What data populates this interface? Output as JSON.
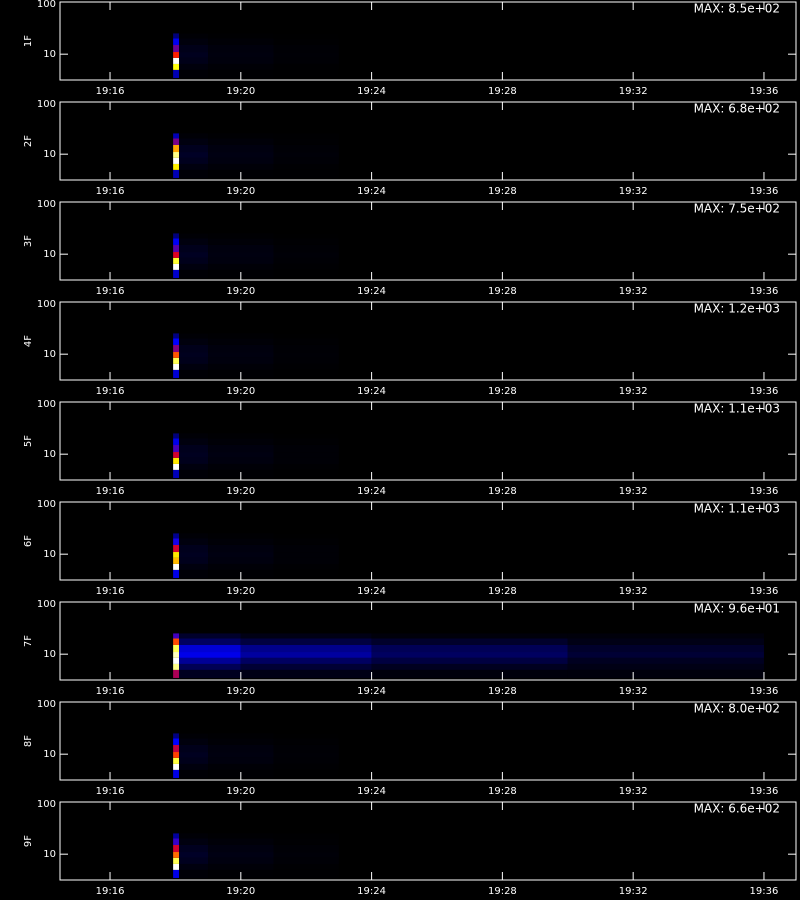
{
  "chart_data": [
    {
      "type": "heatmap",
      "title": "MAX: 8.5e+02",
      "ylabel": "1F",
      "ylog": true,
      "ylim": [
        3.2,
        100
      ],
      "yticks": [
        10,
        100
      ],
      "xlim": [
        1154.47,
        1176.98
      ],
      "xticks": [
        {
          "value": 1156,
          "label": "19:16"
        },
        {
          "value": 1160,
          "label": "19:20"
        },
        {
          "value": 1164,
          "label": "19:24"
        },
        {
          "value": 1168,
          "label": "19:28"
        },
        {
          "value": 1172,
          "label": "19:32"
        },
        {
          "value": 1176,
          "label": "19:36"
        }
      ],
      "colormap": [
        "#000000",
        "#0000ff",
        "#ff0000",
        "#ffff00",
        "#ffffff"
      ],
      "xbins": [
        1157.93,
        1158.11,
        1159,
        1161,
        1163
      ],
      "ybins": [
        3.5,
        5,
        6.5,
        8.5,
        11,
        15,
        20,
        25
      ],
      "z": [
        [
          150,
          4,
          2,
          1
        ],
        [
          650,
          10,
          5,
          2
        ],
        [
          850,
          20,
          10,
          4
        ],
        [
          450,
          25,
          12,
          5
        ],
        [
          300,
          20,
          10,
          4
        ],
        [
          200,
          10,
          5,
          2
        ],
        [
          100,
          4,
          2,
          1
        ]
      ]
    },
    {
      "type": "heatmap",
      "title": "MAX: 6.8e+02",
      "ylabel": "2F",
      "ylog": true,
      "ylim": [
        3.2,
        100
      ],
      "yticks": [
        10,
        100
      ],
      "xlim": [
        1154.47,
        1176.98
      ],
      "xticks": [
        {
          "value": 1156,
          "label": "19:16"
        },
        {
          "value": 1160,
          "label": "19:20"
        },
        {
          "value": 1164,
          "label": "19:24"
        },
        {
          "value": 1168,
          "label": "19:28"
        },
        {
          "value": 1172,
          "label": "19:32"
        },
        {
          "value": 1176,
          "label": "19:36"
        }
      ],
      "colormap": [
        "#000000",
        "#0000ff",
        "#ff0000",
        "#ffff00",
        "#ffffff"
      ],
      "xbins": [
        1157.93,
        1158.11,
        1159,
        1161,
        1163
      ],
      "ybins": [
        3.5,
        5,
        6.5,
        8.5,
        11,
        15,
        20,
        25
      ],
      "z": [
        [
          120,
          4,
          2,
          1
        ],
        [
          500,
          10,
          5,
          2
        ],
        [
          680,
          20,
          10,
          4
        ],
        [
          600,
          25,
          12,
          5
        ],
        [
          450,
          20,
          10,
          4
        ],
        [
          250,
          10,
          5,
          2
        ],
        [
          120,
          4,
          2,
          1
        ]
      ]
    },
    {
      "type": "heatmap",
      "title": "MAX: 7.5e+02",
      "ylabel": "3F",
      "ylog": true,
      "ylim": [
        3.2,
        100
      ],
      "yticks": [
        10,
        100
      ],
      "xlim": [
        1154.47,
        1176.98
      ],
      "xticks": [
        {
          "value": 1156,
          "label": "19:16"
        },
        {
          "value": 1160,
          "label": "19:20"
        },
        {
          "value": 1164,
          "label": "19:24"
        },
        {
          "value": 1168,
          "label": "19:28"
        },
        {
          "value": 1172,
          "label": "19:32"
        },
        {
          "value": 1176,
          "label": "19:36"
        }
      ],
      "colormap": [
        "#000000",
        "#0000ff",
        "#ff0000",
        "#ffff00",
        "#ffffff"
      ],
      "xbins": [
        1157.93,
        1158.11,
        1159,
        1161,
        1163
      ],
      "ybins": [
        3.5,
        5,
        6.5,
        8.5,
        11,
        15,
        20,
        25
      ],
      "z": [
        [
          150,
          4,
          2,
          1
        ],
        [
          750,
          10,
          5,
          2
        ],
        [
          600,
          20,
          10,
          4
        ],
        [
          350,
          25,
          12,
          5
        ],
        [
          250,
          20,
          10,
          4
        ],
        [
          180,
          10,
          5,
          2
        ],
        [
          90,
          4,
          2,
          1
        ]
      ]
    },
    {
      "type": "heatmap",
      "title": "MAX: 1.2e+03",
      "ylabel": "4F",
      "ylog": true,
      "ylim": [
        3.2,
        100
      ],
      "yticks": [
        10,
        100
      ],
      "xlim": [
        1154.47,
        1176.98
      ],
      "xticks": [
        {
          "value": 1156,
          "label": "19:16"
        },
        {
          "value": 1160,
          "label": "19:20"
        },
        {
          "value": 1164,
          "label": "19:24"
        },
        {
          "value": 1168,
          "label": "19:28"
        },
        {
          "value": 1172,
          "label": "19:32"
        },
        {
          "value": 1176,
          "label": "19:36"
        }
      ],
      "colormap": [
        "#000000",
        "#0000ff",
        "#ff0000",
        "#ffff00",
        "#ffffff"
      ],
      "xbins": [
        1157.93,
        1158.11,
        1159,
        1161,
        1163
      ],
      "ybins": [
        3.5,
        5,
        6.5,
        8.5,
        11,
        15,
        20,
        25
      ],
      "z": [
        [
          250,
          6,
          3,
          1
        ],
        [
          1200,
          15,
          8,
          3
        ],
        [
          1000,
          30,
          15,
          6
        ],
        [
          700,
          35,
          18,
          7
        ],
        [
          450,
          30,
          15,
          6
        ],
        [
          300,
          15,
          8,
          3
        ],
        [
          150,
          6,
          3,
          1
        ]
      ]
    },
    {
      "type": "heatmap",
      "title": "MAX: 1.1e+03",
      "ylabel": "5F",
      "ylog": true,
      "ylim": [
        3.2,
        100
      ],
      "yticks": [
        10,
        100
      ],
      "xlim": [
        1154.47,
        1176.98
      ],
      "xticks": [
        {
          "value": 1156,
          "label": "19:16"
        },
        {
          "value": 1160,
          "label": "19:20"
        },
        {
          "value": 1164,
          "label": "19:24"
        },
        {
          "value": 1168,
          "label": "19:28"
        },
        {
          "value": 1172,
          "label": "19:32"
        },
        {
          "value": 1176,
          "label": "19:36"
        }
      ],
      "colormap": [
        "#000000",
        "#0000ff",
        "#ff0000",
        "#ffff00",
        "#ffffff"
      ],
      "xbins": [
        1157.93,
        1158.11,
        1159,
        1161,
        1163
      ],
      "ybins": [
        3.5,
        5,
        6.5,
        8.5,
        11,
        15,
        20,
        25
      ],
      "z": [
        [
          200,
          6,
          3,
          1
        ],
        [
          1100,
          15,
          8,
          3
        ],
        [
          800,
          30,
          15,
          6
        ],
        [
          500,
          35,
          18,
          7
        ],
        [
          350,
          30,
          15,
          6
        ],
        [
          250,
          15,
          8,
          3
        ],
        [
          130,
          6,
          3,
          1
        ]
      ]
    },
    {
      "type": "heatmap",
      "title": "MAX: 1.1e+03",
      "ylabel": "6F",
      "ylog": true,
      "ylim": [
        3.2,
        100
      ],
      "yticks": [
        10,
        100
      ],
      "xlim": [
        1154.47,
        1176.98
      ],
      "xticks": [
        {
          "value": 1156,
          "label": "19:16"
        },
        {
          "value": 1160,
          "label": "19:20"
        },
        {
          "value": 1164,
          "label": "19:24"
        },
        {
          "value": 1168,
          "label": "19:28"
        },
        {
          "value": 1172,
          "label": "19:32"
        },
        {
          "value": 1176,
          "label": "19:36"
        }
      ],
      "colormap": [
        "#000000",
        "#0000ff",
        "#ff0000",
        "#ffff00",
        "#ffffff"
      ],
      "xbins": [
        1157.93,
        1158.11,
        1159,
        1161,
        1163
      ],
      "ybins": [
        3.5,
        5,
        6.5,
        8.5,
        11,
        15,
        20,
        25
      ],
      "z": [
        [
          250,
          6,
          3,
          1
        ],
        [
          1100,
          15,
          8,
          3
        ],
        [
          750,
          30,
          15,
          6
        ],
        [
          800,
          35,
          18,
          7
        ],
        [
          500,
          30,
          15,
          6
        ],
        [
          300,
          15,
          8,
          3
        ],
        [
          150,
          6,
          3,
          1
        ]
      ]
    },
    {
      "type": "heatmap",
      "title": "MAX: 9.6e+01",
      "ylabel": "7F",
      "ylog": true,
      "ylim": [
        3.2,
        100
      ],
      "yticks": [
        10,
        100
      ],
      "xlim": [
        1154.47,
        1176.98
      ],
      "xticks": [
        {
          "value": 1156,
          "label": "19:16"
        },
        {
          "value": 1160,
          "label": "19:20"
        },
        {
          "value": 1164,
          "label": "19:24"
        },
        {
          "value": 1168,
          "label": "19:28"
        },
        {
          "value": 1172,
          "label": "19:32"
        },
        {
          "value": 1176,
          "label": "19:36"
        }
      ],
      "colormap": [
        "#000000",
        "#0000ff",
        "#ff0000",
        "#ffff00",
        "#ffffff"
      ],
      "xbins": [
        1157.93,
        1158.11,
        1160,
        1164,
        1170,
        1176
      ],
      "ybins": [
        3.5,
        5,
        6.5,
        8.5,
        11,
        15,
        20,
        25
      ],
      "z": [
        [
          40,
          3,
          2,
          1,
          1
        ],
        [
          85,
          8,
          5,
          3,
          2
        ],
        [
          96,
          14,
          9,
          6,
          3
        ],
        [
          90,
          22,
          15,
          9,
          5
        ],
        [
          80,
          20,
          13,
          8,
          4
        ],
        [
          55,
          9,
          6,
          4,
          2
        ],
        [
          30,
          4,
          2,
          1,
          1
        ]
      ]
    },
    {
      "type": "heatmap",
      "title": "MAX: 8.0e+02",
      "ylabel": "8F",
      "ylog": true,
      "ylim": [
        3.2,
        100
      ],
      "yticks": [
        10,
        100
      ],
      "xlim": [
        1154.47,
        1176.98
      ],
      "xticks": [
        {
          "value": 1156,
          "label": "19:16"
        },
        {
          "value": 1160,
          "label": "19:20"
        },
        {
          "value": 1164,
          "label": "19:24"
        },
        {
          "value": 1168,
          "label": "19:28"
        },
        {
          "value": 1172,
          "label": "19:32"
        },
        {
          "value": 1176,
          "label": "19:36"
        }
      ],
      "colormap": [
        "#000000",
        "#0000ff",
        "#ff0000",
        "#ffff00",
        "#ffffff"
      ],
      "xbins": [
        1157.93,
        1158.11,
        1159,
        1161,
        1163
      ],
      "ybins": [
        3.5,
        5,
        6.5,
        8.5,
        11,
        15,
        20,
        25
      ],
      "z": [
        [
          180,
          4,
          2,
          1
        ],
        [
          800,
          10,
          5,
          2
        ],
        [
          650,
          20,
          10,
          4
        ],
        [
          450,
          25,
          12,
          5
        ],
        [
          350,
          20,
          10,
          4
        ],
        [
          200,
          10,
          5,
          2
        ],
        [
          100,
          4,
          2,
          1
        ]
      ]
    },
    {
      "type": "heatmap",
      "title": "MAX: 6.6e+02",
      "ylabel": "9F",
      "ylog": true,
      "ylim": [
        3.2,
        100
      ],
      "yticks": [
        10,
        100
      ],
      "xlim": [
        1154.47,
        1176.98
      ],
      "xticks": [
        {
          "value": 1156,
          "label": "19:16"
        },
        {
          "value": 1160,
          "label": "19:20"
        },
        {
          "value": 1164,
          "label": "19:24"
        },
        {
          "value": 1168,
          "label": "19:28"
        },
        {
          "value": 1172,
          "label": "19:32"
        },
        {
          "value": 1176,
          "label": "19:36"
        }
      ],
      "colormap": [
        "#000000",
        "#0000ff",
        "#ff0000",
        "#ffff00",
        "#ffffff"
      ],
      "xbins": [
        1157.93,
        1158.11,
        1159,
        1161,
        1163
      ],
      "ybins": [
        3.5,
        5,
        6.5,
        8.5,
        11,
        15,
        20,
        25
      ],
      "z": [
        [
          150,
          4,
          2,
          1
        ],
        [
          660,
          10,
          5,
          2
        ],
        [
          550,
          20,
          10,
          4
        ],
        [
          400,
          25,
          12,
          5
        ],
        [
          300,
          20,
          10,
          4
        ],
        [
          200,
          10,
          5,
          2
        ],
        [
          100,
          4,
          2,
          1
        ]
      ]
    }
  ]
}
